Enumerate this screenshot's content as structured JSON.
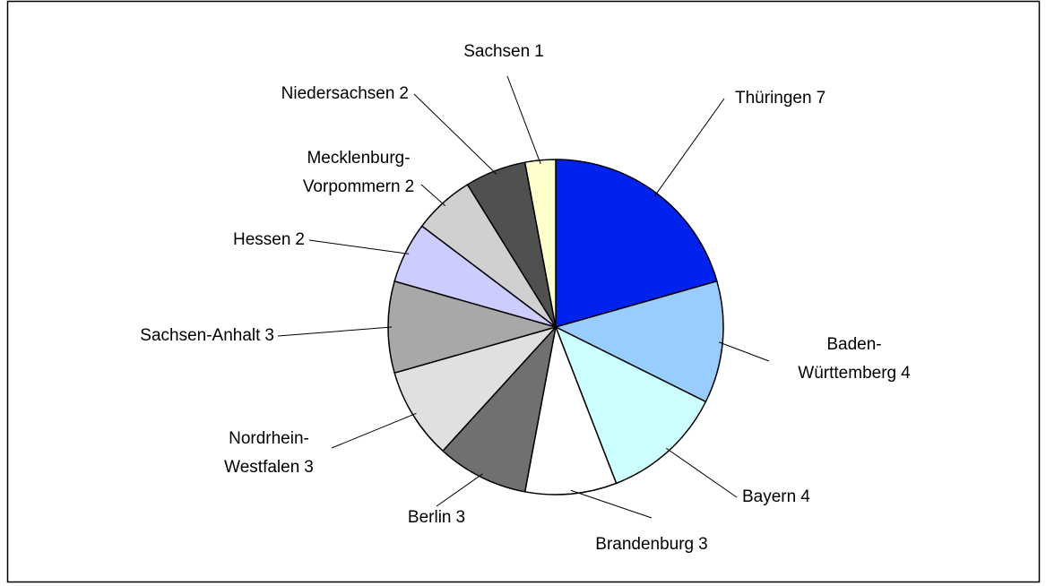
{
  "chart_data": {
    "type": "pie",
    "categories": [
      "Thüringen",
      "Baden-Württemberg",
      "Bayern",
      "Brandenburg",
      "Berlin",
      "Nordrhein-Westfalen",
      "Sachsen-Anhalt",
      "Hessen",
      "Mecklenburg-Vorpommern",
      "Niedersachsen",
      "Sachsen"
    ],
    "values": [
      7,
      4,
      4,
      3,
      3,
      3,
      3,
      2,
      2,
      2,
      1
    ],
    "colors": [
      "#0022ee",
      "#99ccff",
      "#ccffff",
      "#ffffff",
      "#707070",
      "#e0e0e0",
      "#a8a8a8",
      "#ccccff",
      "#d0d0d0",
      "#505050",
      "#ffffcc"
    ]
  }
}
